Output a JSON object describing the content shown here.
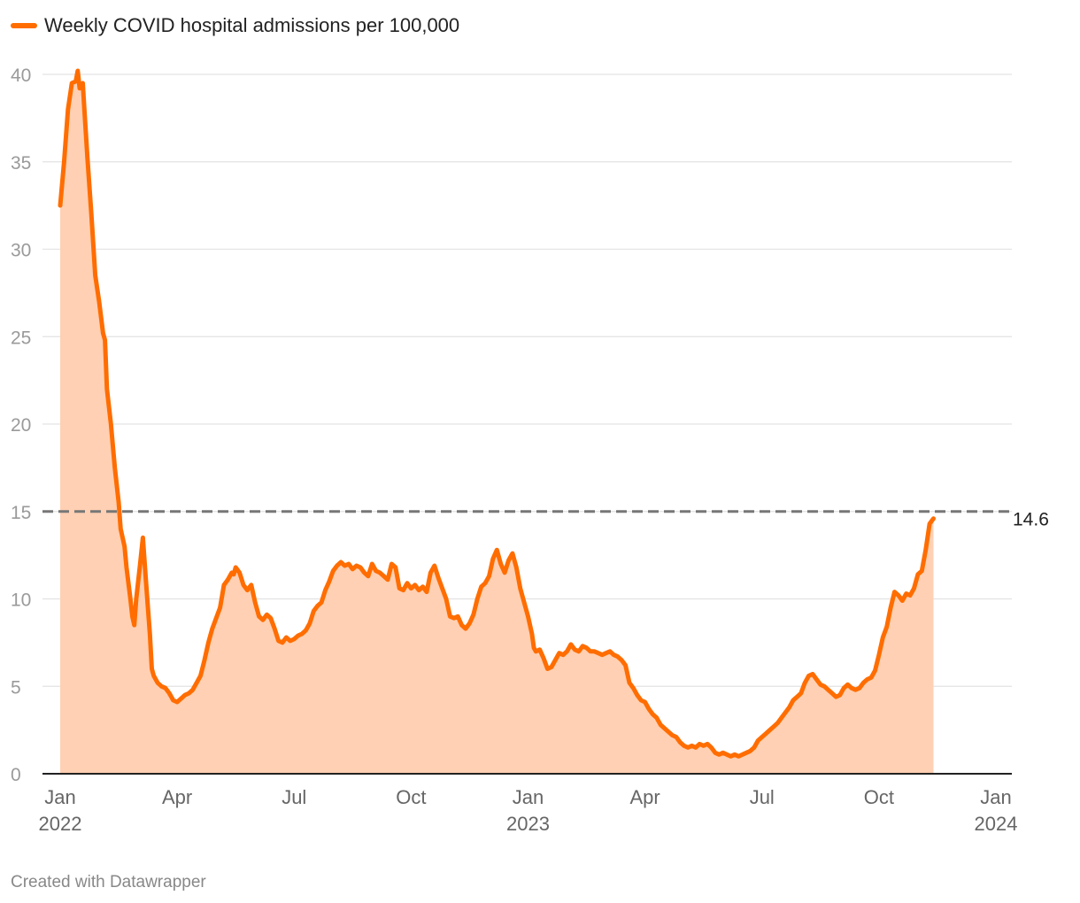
{
  "legend": {
    "label": "Weekly COVID hospital admissions per 100,000",
    "color": "#ff6d01"
  },
  "credit": "Created with Datawrapper",
  "colors": {
    "line": "#ff6d01",
    "area": "#ffd0b3",
    "grid": "#e3e3e3",
    "axis": "#222222",
    "reference": "#777777"
  },
  "chart_data": {
    "type": "area",
    "title": "",
    "series": [
      {
        "name": "Weekly COVID hospital admissions per 100,000"
      }
    ],
    "xlabel": "",
    "ylabel": "",
    "ylim": [
      0,
      40
    ],
    "yticks": [
      "0",
      "5",
      "10",
      "15",
      "20",
      "25",
      "30",
      "35",
      "40"
    ],
    "xticks": [
      {
        "t": 0,
        "label": "Jan",
        "sub": "2022"
      },
      {
        "t": 3,
        "label": "Apr",
        "sub": ""
      },
      {
        "t": 6,
        "label": "Jul",
        "sub": ""
      },
      {
        "t": 9,
        "label": "Oct",
        "sub": ""
      },
      {
        "t": 12,
        "label": "Jan",
        "sub": "2023"
      },
      {
        "t": 15,
        "label": "Apr",
        "sub": ""
      },
      {
        "t": 18,
        "label": "Jul",
        "sub": ""
      },
      {
        "t": 21,
        "label": "Oct",
        "sub": ""
      },
      {
        "t": 24,
        "label": "Jan",
        "sub": "2024"
      }
    ],
    "xrange": [
      0,
      24
    ],
    "reference_line": {
      "value": 15,
      "style": "dashed"
    },
    "end_label": "14.6",
    "points": [
      [
        0.0,
        32.5
      ],
      [
        0.1,
        35
      ],
      [
        0.2,
        38
      ],
      [
        0.3,
        39.5
      ],
      [
        0.4,
        39.6
      ],
      [
        0.45,
        40.2
      ],
      [
        0.5,
        39.2
      ],
      [
        0.58,
        39.5
      ],
      [
        0.62,
        38
      ],
      [
        0.7,
        35.2
      ],
      [
        0.8,
        32
      ],
      [
        0.9,
        28.5
      ],
      [
        1.0,
        27
      ],
      [
        1.1,
        25.2
      ],
      [
        1.15,
        24.8
      ],
      [
        1.2,
        22
      ],
      [
        1.3,
        20
      ],
      [
        1.4,
        17.5
      ],
      [
        1.5,
        15.5
      ],
      [
        1.55,
        14
      ],
      [
        1.65,
        13
      ],
      [
        1.7,
        11.8
      ],
      [
        1.8,
        10
      ],
      [
        1.85,
        9
      ],
      [
        1.9,
        8.5
      ],
      [
        1.95,
        10
      ],
      [
        2.05,
        12
      ],
      [
        2.12,
        13.5
      ],
      [
        2.2,
        11
      ],
      [
        2.3,
        8
      ],
      [
        2.35,
        6
      ],
      [
        2.4,
        5.6
      ],
      [
        2.5,
        5.2
      ],
      [
        2.6,
        5
      ],
      [
        2.7,
        4.9
      ],
      [
        2.8,
        4.6
      ],
      [
        2.9,
        4.2
      ],
      [
        3.0,
        4.1
      ],
      [
        3.1,
        4.3
      ],
      [
        3.2,
        4.5
      ],
      [
        3.3,
        4.6
      ],
      [
        3.4,
        4.8
      ],
      [
        3.5,
        5.2
      ],
      [
        3.6,
        5.6
      ],
      [
        3.7,
        6.5
      ],
      [
        3.8,
        7.5
      ],
      [
        3.9,
        8.3
      ],
      [
        4.0,
        8.9
      ],
      [
        4.1,
        9.5
      ],
      [
        4.2,
        10.8
      ],
      [
        4.3,
        11.1
      ],
      [
        4.4,
        11.5
      ],
      [
        4.45,
        11.4
      ],
      [
        4.5,
        11.8
      ],
      [
        4.6,
        11.5
      ],
      [
        4.7,
        10.8
      ],
      [
        4.8,
        10.5
      ],
      [
        4.9,
        10.8
      ],
      [
        5.0,
        9.8
      ],
      [
        5.1,
        9.0
      ],
      [
        5.2,
        8.8
      ],
      [
        5.3,
        9.1
      ],
      [
        5.4,
        8.9
      ],
      [
        5.5,
        8.3
      ],
      [
        5.6,
        7.6
      ],
      [
        5.7,
        7.5
      ],
      [
        5.8,
        7.8
      ],
      [
        5.9,
        7.6
      ],
      [
        6.0,
        7.7
      ],
      [
        6.1,
        7.9
      ],
      [
        6.2,
        8.0
      ],
      [
        6.3,
        8.2
      ],
      [
        6.4,
        8.6
      ],
      [
        6.5,
        9.3
      ],
      [
        6.6,
        9.6
      ],
      [
        6.7,
        9.8
      ],
      [
        6.8,
        10.5
      ],
      [
        6.9,
        11.0
      ],
      [
        7.0,
        11.6
      ],
      [
        7.1,
        11.9
      ],
      [
        7.2,
        12.1
      ],
      [
        7.3,
        11.9
      ],
      [
        7.4,
        12.0
      ],
      [
        7.5,
        11.7
      ],
      [
        7.6,
        11.9
      ],
      [
        7.7,
        11.8
      ],
      [
        7.8,
        11.5
      ],
      [
        7.9,
        11.3
      ],
      [
        8.0,
        12.0
      ],
      [
        8.1,
        11.6
      ],
      [
        8.2,
        11.5
      ],
      [
        8.3,
        11.3
      ],
      [
        8.4,
        11.1
      ],
      [
        8.5,
        12.0
      ],
      [
        8.6,
        11.8
      ],
      [
        8.7,
        10.6
      ],
      [
        8.8,
        10.5
      ],
      [
        8.9,
        10.9
      ],
      [
        9.0,
        10.6
      ],
      [
        9.1,
        10.8
      ],
      [
        9.2,
        10.5
      ],
      [
        9.3,
        10.7
      ],
      [
        9.4,
        10.4
      ],
      [
        9.5,
        11.5
      ],
      [
        9.6,
        11.9
      ],
      [
        9.7,
        11.2
      ],
      [
        9.8,
        10.6
      ],
      [
        9.9,
        10.0
      ],
      [
        10.0,
        9.0
      ],
      [
        10.1,
        8.9
      ],
      [
        10.2,
        9.0
      ],
      [
        10.3,
        8.5
      ],
      [
        10.4,
        8.3
      ],
      [
        10.5,
        8.6
      ],
      [
        10.6,
        9.1
      ],
      [
        10.7,
        10.0
      ],
      [
        10.8,
        10.7
      ],
      [
        10.9,
        10.9
      ],
      [
        11.0,
        11.3
      ],
      [
        11.1,
        12.3
      ],
      [
        11.2,
        12.8
      ],
      [
        11.3,
        12.0
      ],
      [
        11.4,
        11.5
      ],
      [
        11.5,
        12.2
      ],
      [
        11.6,
        12.6
      ],
      [
        11.7,
        11.8
      ],
      [
        11.8,
        10.6
      ],
      [
        11.9,
        9.8
      ],
      [
        12.0,
        9.0
      ],
      [
        12.1,
        8.0
      ],
      [
        12.15,
        7.2
      ],
      [
        12.2,
        7.0
      ],
      [
        12.3,
        7.1
      ],
      [
        12.4,
        6.6
      ],
      [
        12.5,
        6.0
      ],
      [
        12.6,
        6.1
      ],
      [
        12.7,
        6.5
      ],
      [
        12.8,
        6.9
      ],
      [
        12.9,
        6.8
      ],
      [
        13.0,
        7.0
      ],
      [
        13.1,
        7.4
      ],
      [
        13.2,
        7.1
      ],
      [
        13.3,
        7.0
      ],
      [
        13.4,
        7.3
      ],
      [
        13.5,
        7.2
      ],
      [
        13.6,
        7.0
      ],
      [
        13.7,
        7.0
      ],
      [
        13.8,
        6.9
      ],
      [
        13.9,
        6.8
      ],
      [
        14.0,
        6.9
      ],
      [
        14.1,
        7.0
      ],
      [
        14.2,
        6.8
      ],
      [
        14.3,
        6.7
      ],
      [
        14.4,
        6.5
      ],
      [
        14.5,
        6.2
      ],
      [
        14.6,
        5.2
      ],
      [
        14.7,
        4.9
      ],
      [
        14.8,
        4.5
      ],
      [
        14.9,
        4.2
      ],
      [
        15.0,
        4.1
      ],
      [
        15.1,
        3.7
      ],
      [
        15.2,
        3.4
      ],
      [
        15.3,
        3.2
      ],
      [
        15.4,
        2.8
      ],
      [
        15.5,
        2.6
      ],
      [
        15.6,
        2.4
      ],
      [
        15.7,
        2.2
      ],
      [
        15.8,
        2.1
      ],
      [
        15.9,
        1.8
      ],
      [
        16.0,
        1.6
      ],
      [
        16.1,
        1.5
      ],
      [
        16.2,
        1.6
      ],
      [
        16.3,
        1.5
      ],
      [
        16.4,
        1.7
      ],
      [
        16.5,
        1.6
      ],
      [
        16.6,
        1.7
      ],
      [
        16.7,
        1.5
      ],
      [
        16.8,
        1.2
      ],
      [
        16.9,
        1.1
      ],
      [
        17.0,
        1.2
      ],
      [
        17.1,
        1.1
      ],
      [
        17.2,
        1.0
      ],
      [
        17.3,
        1.1
      ],
      [
        17.4,
        1.0
      ],
      [
        17.5,
        1.1
      ],
      [
        17.6,
        1.2
      ],
      [
        17.7,
        1.3
      ],
      [
        17.8,
        1.5
      ],
      [
        17.9,
        1.9
      ],
      [
        18.0,
        2.1
      ],
      [
        18.1,
        2.3
      ],
      [
        18.2,
        2.5
      ],
      [
        18.3,
        2.7
      ],
      [
        18.4,
        2.9
      ],
      [
        18.5,
        3.2
      ],
      [
        18.6,
        3.5
      ],
      [
        18.7,
        3.8
      ],
      [
        18.8,
        4.2
      ],
      [
        18.9,
        4.4
      ],
      [
        19.0,
        4.6
      ],
      [
        19.1,
        5.2
      ],
      [
        19.2,
        5.6
      ],
      [
        19.3,
        5.7
      ],
      [
        19.4,
        5.4
      ],
      [
        19.5,
        5.1
      ],
      [
        19.6,
        5.0
      ],
      [
        19.7,
        4.8
      ],
      [
        19.8,
        4.6
      ],
      [
        19.9,
        4.4
      ],
      [
        20.0,
        4.5
      ],
      [
        20.1,
        4.9
      ],
      [
        20.2,
        5.1
      ],
      [
        20.3,
        4.9
      ],
      [
        20.4,
        4.8
      ],
      [
        20.5,
        4.9
      ],
      [
        20.6,
        5.2
      ],
      [
        20.7,
        5.4
      ],
      [
        20.8,
        5.5
      ],
      [
        20.9,
        5.9
      ],
      [
        21.0,
        6.8
      ],
      [
        21.1,
        7.8
      ],
      [
        21.2,
        8.4
      ],
      [
        21.3,
        9.5
      ],
      [
        21.4,
        10.4
      ],
      [
        21.5,
        10.2
      ],
      [
        21.6,
        9.9
      ],
      [
        21.7,
        10.3
      ],
      [
        21.8,
        10.2
      ],
      [
        21.9,
        10.6
      ],
      [
        22.0,
        11.4
      ],
      [
        22.1,
        11.6
      ],
      [
        22.2,
        12.8
      ],
      [
        22.3,
        14.3
      ],
      [
        22.4,
        14.6
      ]
    ]
  }
}
